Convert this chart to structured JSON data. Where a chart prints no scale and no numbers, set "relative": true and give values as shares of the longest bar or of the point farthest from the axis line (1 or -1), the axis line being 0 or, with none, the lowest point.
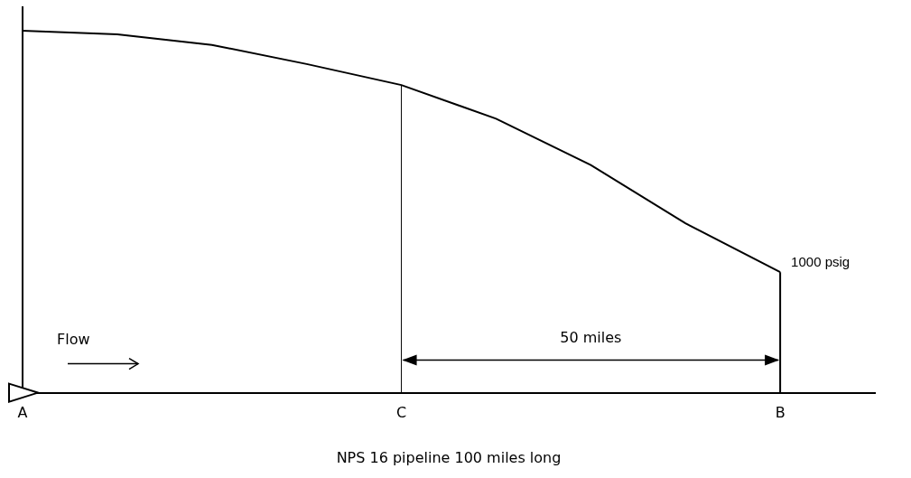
{
  "chart_data": {
    "type": "line",
    "relative": true,
    "xlabel": "NPS 16 pipeline 100 miles long",
    "categories": [
      "A",
      null,
      null,
      null,
      "C",
      null,
      null,
      null,
      "B",
      null
    ],
    "series": [
      {
        "color": "#000000",
        "values": [
          1.0,
          0.99,
          0.961,
          0.908,
          0.85,
          0.757,
          0.629,
          0.468,
          0.333,
          null
        ]
      }
    ],
    "ref_lines": [
      {
        "axis": "x",
        "value": "C"
      },
      {
        "axis": "x",
        "value": "B"
      }
    ],
    "annotations": [
      "Flow",
      "50 miles",
      {
        "text": "1000 psig",
        "x": "B",
        "y": 0.333
      }
    ],
    "grid": false,
    "legend": false
  }
}
